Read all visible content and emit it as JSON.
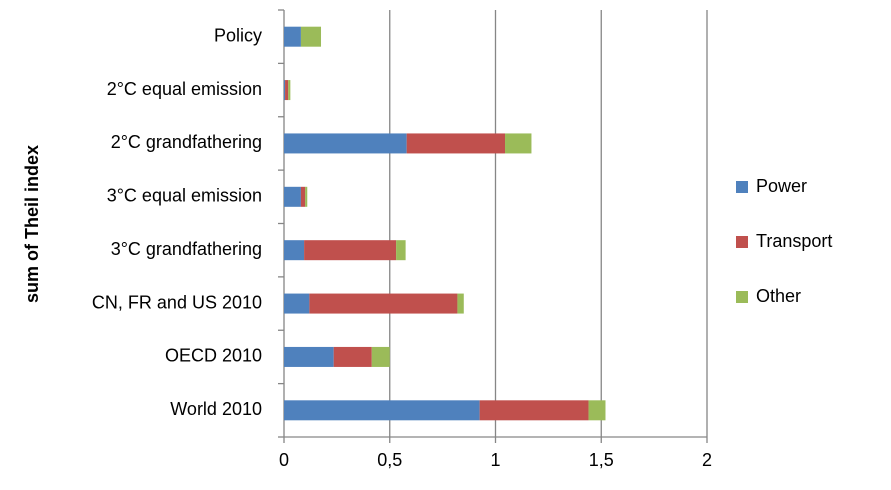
{
  "chart_data": {
    "type": "stacked_barh",
    "y_axis_label": "sum of Theil index",
    "categories": [
      "Policy",
      "2°C equal emission",
      "2°C grandfathering",
      "3°C equal emission",
      "3°C grandfathering",
      "CN, FR and US 2010",
      "OECD 2010",
      "World 2010"
    ],
    "series": [
      {
        "name": "Power",
        "color": "#4f81bd",
        "values": [
          0.08,
          0.005,
          0.58,
          0.08,
          0.095,
          0.12,
          0.235,
          0.925
        ]
      },
      {
        "name": "Transport",
        "color": "#c0504d",
        "values": [
          0,
          0.015,
          0.465,
          0.02,
          0.435,
          0.7,
          0.18,
          0.515
        ]
      },
      {
        "name": "Other",
        "color": "#9bbb59",
        "values": [
          0.095,
          0.01,
          0.125,
          0.01,
          0.045,
          0.03,
          0.085,
          0.08
        ]
      }
    ],
    "xlim": [
      0,
      2
    ],
    "xticks": [
      0,
      {
        "value": 0.5,
        "label": "0,5"
      },
      1,
      {
        "value": 1.5,
        "label": "1,5"
      },
      2
    ],
    "grid": true,
    "legend": "right"
  }
}
